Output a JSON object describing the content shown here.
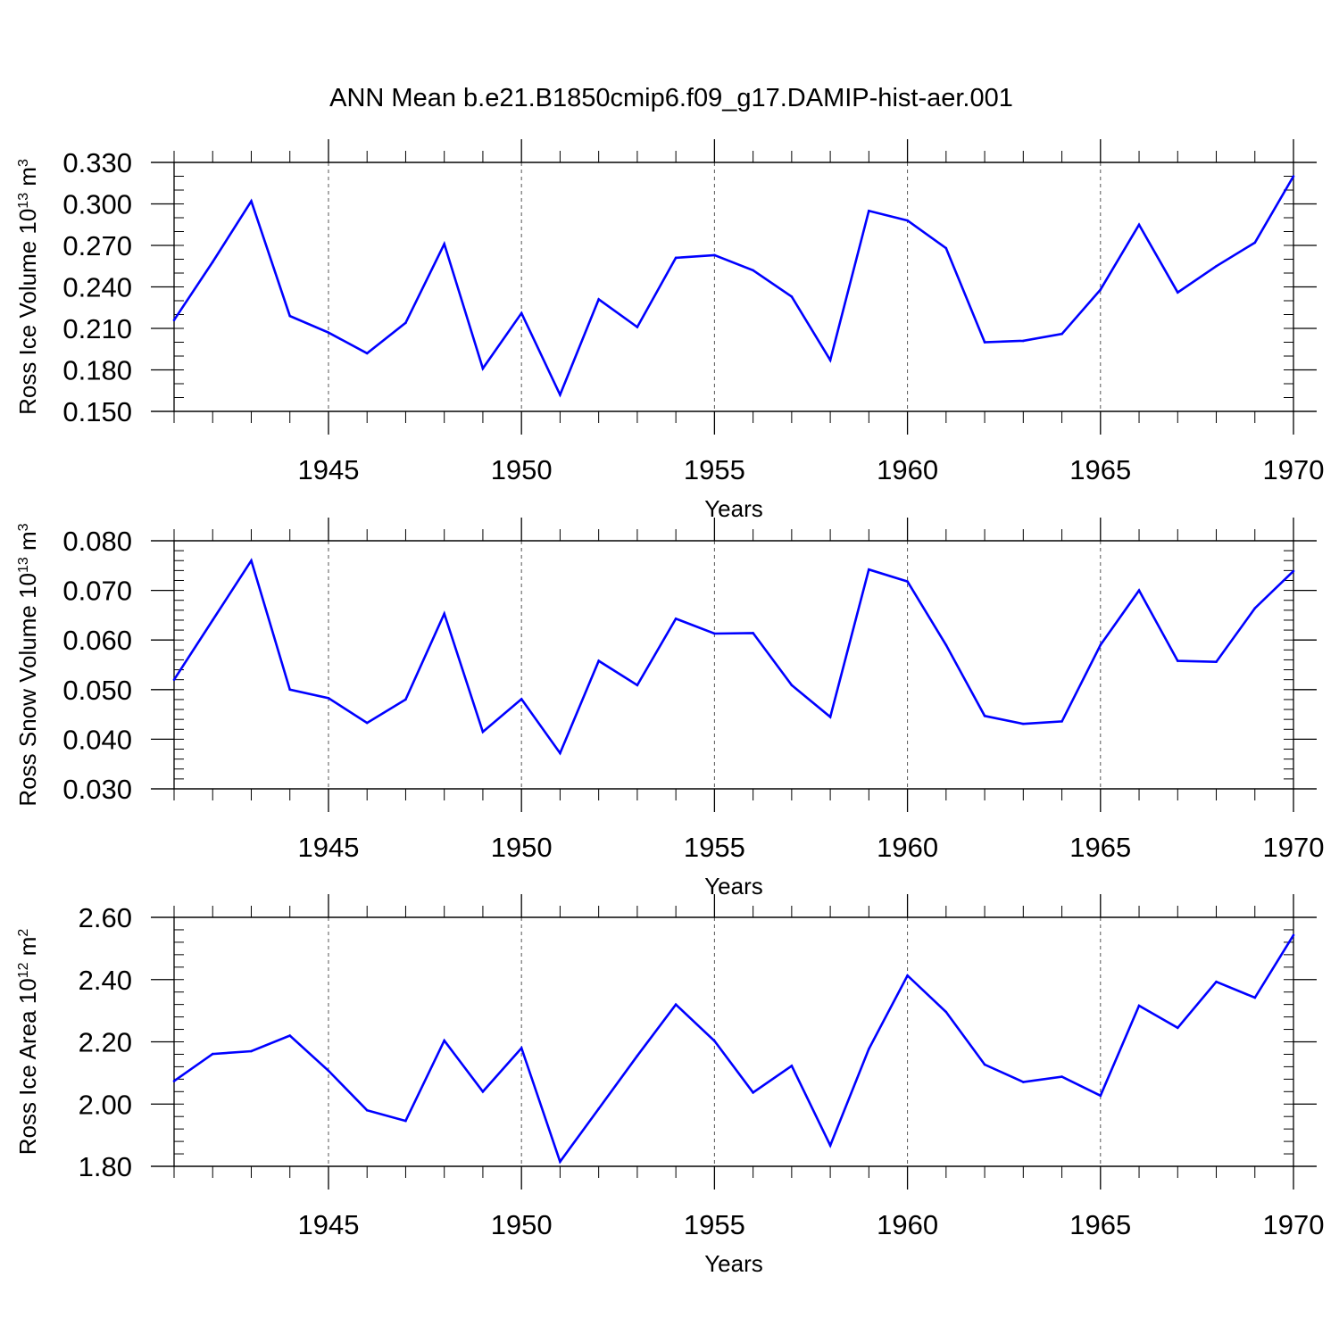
{
  "title": "ANN Mean b.e21.B1850cmip6.f09_g17.DAMIP-hist-aer.001",
  "line_color": "#0000ff",
  "grid_color": "#555555",
  "chart_data": [
    {
      "type": "line",
      "title": "ANN Mean b.e21.B1850cmip6.f09_g17.DAMIP-hist-aer.001",
      "xlabel": "Years",
      "ylabel": {
        "base": "Ross Ice Volume 10",
        "exp": "13",
        "unit": " m",
        "unit_exp": "3"
      },
      "xlim": [
        1941,
        1970
      ],
      "ylim": [
        0.15,
        0.33
      ],
      "yticks": [
        0.15,
        0.18,
        0.21,
        0.24,
        0.27,
        0.3,
        0.33
      ],
      "ytick_labels": [
        "0.150",
        "0.180",
        "0.210",
        "0.240",
        "0.270",
        "0.300",
        "0.330"
      ],
      "yminor_step": 0.01,
      "xticks": [
        1945,
        1950,
        1955,
        1960,
        1965,
        1970
      ],
      "xtick_labels": [
        "1945",
        "1950",
        "1955",
        "1960",
        "1965",
        "1970"
      ],
      "grid": "x-dashed",
      "x": [
        1941,
        1942,
        1943,
        1944,
        1945,
        1946,
        1947,
        1948,
        1949,
        1950,
        1951,
        1952,
        1953,
        1954,
        1955,
        1956,
        1957,
        1958,
        1959,
        1960,
        1961,
        1962,
        1963,
        1964,
        1965,
        1966,
        1967,
        1968,
        1969,
        1970
      ],
      "values": [
        0.216,
        0.258,
        0.302,
        0.219,
        0.207,
        0.192,
        0.214,
        0.271,
        0.181,
        0.221,
        0.162,
        0.231,
        0.211,
        0.261,
        0.263,
        0.252,
        0.233,
        0.187,
        0.295,
        0.288,
        0.268,
        0.2,
        0.201,
        0.206,
        0.238,
        0.285,
        0.236,
        0.255,
        0.272,
        0.32
      ]
    },
    {
      "type": "line",
      "title": "",
      "xlabel": "Years",
      "ylabel": {
        "base": "Ross Snow Volume 10",
        "exp": "13",
        "unit": " m",
        "unit_exp": "3"
      },
      "xlim": [
        1941,
        1970
      ],
      "ylim": [
        0.03,
        0.08
      ],
      "yticks": [
        0.03,
        0.04,
        0.05,
        0.06,
        0.07,
        0.08
      ],
      "ytick_labels": [
        "0.030",
        "0.040",
        "0.050",
        "0.060",
        "0.070",
        "0.080"
      ],
      "yminor_step": 0.002,
      "xticks": [
        1945,
        1950,
        1955,
        1960,
        1965,
        1970
      ],
      "xtick_labels": [
        "1945",
        "1950",
        "1955",
        "1960",
        "1965",
        "1970"
      ],
      "grid": "x-dashed",
      "x": [
        1941,
        1942,
        1943,
        1944,
        1945,
        1946,
        1947,
        1948,
        1949,
        1950,
        1951,
        1952,
        1953,
        1954,
        1955,
        1956,
        1957,
        1958,
        1959,
        1960,
        1961,
        1962,
        1963,
        1964,
        1965,
        1966,
        1967,
        1968,
        1969,
        1970
      ],
      "values": [
        0.052,
        0.064,
        0.076,
        0.05,
        0.0483,
        0.0433,
        0.048,
        0.0653,
        0.0415,
        0.0481,
        0.0372,
        0.0558,
        0.0509,
        0.0643,
        0.0613,
        0.0614,
        0.0509,
        0.0445,
        0.0742,
        0.0718,
        0.059,
        0.0447,
        0.0431,
        0.0436,
        0.059,
        0.07,
        0.0558,
        0.0556,
        0.0664,
        0.0739
      ]
    },
    {
      "type": "line",
      "title": "",
      "xlabel": "Years",
      "ylabel": {
        "base": "Ross Ice Area 10",
        "exp": "12",
        "unit": " m",
        "unit_exp": "2"
      },
      "xlim": [
        1941,
        1970
      ],
      "ylim": [
        1.8,
        2.6
      ],
      "yticks": [
        1.8,
        2.0,
        2.2,
        2.4,
        2.6
      ],
      "ytick_labels": [
        "1.80",
        "2.00",
        "2.20",
        "2.40",
        "2.60"
      ],
      "yminor_step": 0.04,
      "xticks": [
        1945,
        1950,
        1955,
        1960,
        1965,
        1970
      ],
      "xtick_labels": [
        "1945",
        "1950",
        "1955",
        "1960",
        "1965",
        "1970"
      ],
      "grid": "x-dashed",
      "x": [
        1941,
        1942,
        1943,
        1944,
        1945,
        1946,
        1947,
        1948,
        1949,
        1950,
        1951,
        1952,
        1953,
        1954,
        1955,
        1956,
        1957,
        1958,
        1959,
        1960,
        1961,
        1962,
        1963,
        1964,
        1965,
        1966,
        1967,
        1968,
        1969,
        1970
      ],
      "values": [
        2.074,
        2.161,
        2.17,
        2.22,
        2.107,
        1.98,
        1.946,
        2.204,
        2.04,
        2.18,
        1.815,
        1.985,
        2.155,
        2.32,
        2.203,
        2.037,
        2.123,
        1.867,
        2.177,
        2.413,
        2.296,
        2.127,
        2.071,
        2.088,
        2.027,
        2.316,
        2.245,
        2.393,
        2.342,
        2.543
      ]
    }
  ]
}
